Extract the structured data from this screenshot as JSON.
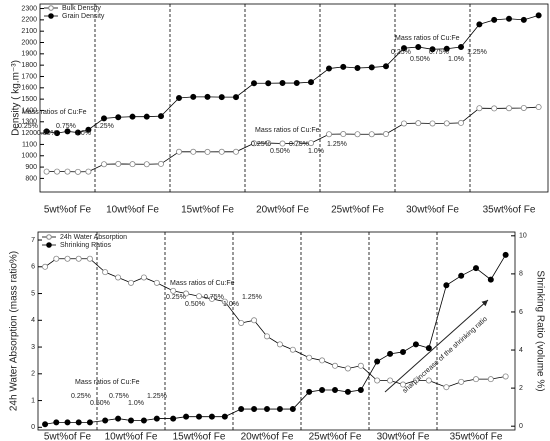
{
  "chart_data": [
    {
      "type": "line",
      "ylabel": "Density ( kg.m⁻³)",
      "groups": [
        "5wt%of Fe",
        "10wt%of Fe",
        "15wt%of Fe",
        "20wt%of Fe",
        "25wt%of Fe",
        "30wt%of Fe",
        "35wt%of Fe"
      ],
      "series": [
        {
          "name": "Bulk Density",
          "color": "#888888",
          "marker": "open",
          "values": [
            860,
            860,
            860,
            858,
            860,
            925,
            928,
            926,
            925,
            928,
            1035,
            1035,
            1034,
            1035,
            1035,
            1110,
            1112,
            1108,
            1110,
            1112,
            1190,
            1192,
            1190,
            1190,
            1192,
            1285,
            1288,
            1285,
            1286,
            1290,
            1420,
            1418,
            1420,
            1422,
            1430
          ]
        },
        {
          "name": "Grain Density",
          "color": "#000000",
          "marker": "filled",
          "values": [
            1215,
            1200,
            1215,
            1205,
            1230,
            1330,
            1340,
            1345,
            1345,
            1350,
            1510,
            1520,
            1520,
            1518,
            1518,
            1640,
            1640,
            1642,
            1642,
            1650,
            1770,
            1785,
            1775,
            1780,
            1790,
            1950,
            1960,
            1940,
            1945,
            1960,
            2160,
            2200,
            2210,
            2200,
            2240
          ]
        }
      ],
      "ylim": [
        680,
        2340
      ],
      "yticks": [
        800,
        900,
        1000,
        1100,
        1200,
        1300,
        1400,
        1500,
        1600,
        1700,
        1800,
        1900,
        2000,
        2100,
        2200,
        2300
      ],
      "annotations": [
        {
          "text": "Mass ratios of Cu:Fe",
          "ratios": [
            "0.25%",
            "0.50%",
            "0.75%",
            "1.0%",
            "1.25%"
          ]
        },
        {
          "text": "Mass ratios of Cu:Fe",
          "ratios": [
            "0.25%",
            "0.50%",
            "0.75%",
            "1.0%",
            "1.25%"
          ]
        },
        {
          "text": "Mass ratios of Cu:Fe",
          "ratios": [
            "0.25%",
            "0.50%",
            "0.75%",
            "1.0%",
            "1.25%"
          ]
        }
      ]
    },
    {
      "type": "line",
      "ylabel": "24h Water Absorption (mass ratio%)",
      "y2label": "Shrinking Ratio (volume %)",
      "groups": [
        "5wt%of Fe",
        "10wt%of Fe",
        "15wt%of Fe",
        "20wt%of Fe",
        "25wt%of Fe",
        "30wt%of Fe",
        "35wt%of Fe"
      ],
      "series": [
        {
          "name": "24h Water Absorption",
          "color": "#888888",
          "marker": "open",
          "values": [
            6.0,
            6.3,
            6.3,
            6.3,
            6.3,
            5.8,
            5.6,
            5.4,
            5.6,
            5.4,
            5.1,
            5.0,
            4.9,
            4.8,
            4.7,
            3.9,
            4.0,
            3.4,
            3.1,
            2.9,
            2.6,
            2.5,
            2.3,
            2.2,
            2.3,
            1.75,
            1.75,
            1.6,
            1.75,
            1.75,
            1.5,
            1.7,
            1.8,
            1.8,
            1.9
          ]
        },
        {
          "name": "Shrinking Ratios",
          "color": "#000000",
          "marker": "filled",
          "axis": "y2",
          "values": [
            0.1,
            0.2,
            0.2,
            0.2,
            0.2,
            0.3,
            0.4,
            0.3,
            0.3,
            0.4,
            0.4,
            0.5,
            0.5,
            0.5,
            0.5,
            0.9,
            0.9,
            0.9,
            0.9,
            0.9,
            1.8,
            1.9,
            1.9,
            1.8,
            1.9,
            3.4,
            3.8,
            3.9,
            4.3,
            4.1,
            7.4,
            7.9,
            8.3,
            7.7,
            9.0
          ]
        }
      ],
      "ylim": [
        -0.1,
        7.3
      ],
      "yticks": [
        0,
        1,
        2,
        3,
        4,
        5,
        6,
        7
      ],
      "y2lim": [
        -0.2,
        10.2
      ],
      "y2ticks": [
        0,
        2,
        4,
        6,
        8,
        10
      ],
      "annotations": [
        {
          "text": "Mass ratios of Cu:Fe",
          "ratios": [
            "0.25%",
            "0.50%",
            "0.75%",
            "1.0%",
            "1.25%"
          ]
        },
        {
          "text": "Mass ratios of Cu:Fe",
          "ratios": [
            "0.25%",
            "0.50%",
            "0.75%",
            "1.0%",
            "1.25%"
          ]
        }
      ],
      "arrow_text": "sharp increase of the shrinking ratio"
    }
  ]
}
